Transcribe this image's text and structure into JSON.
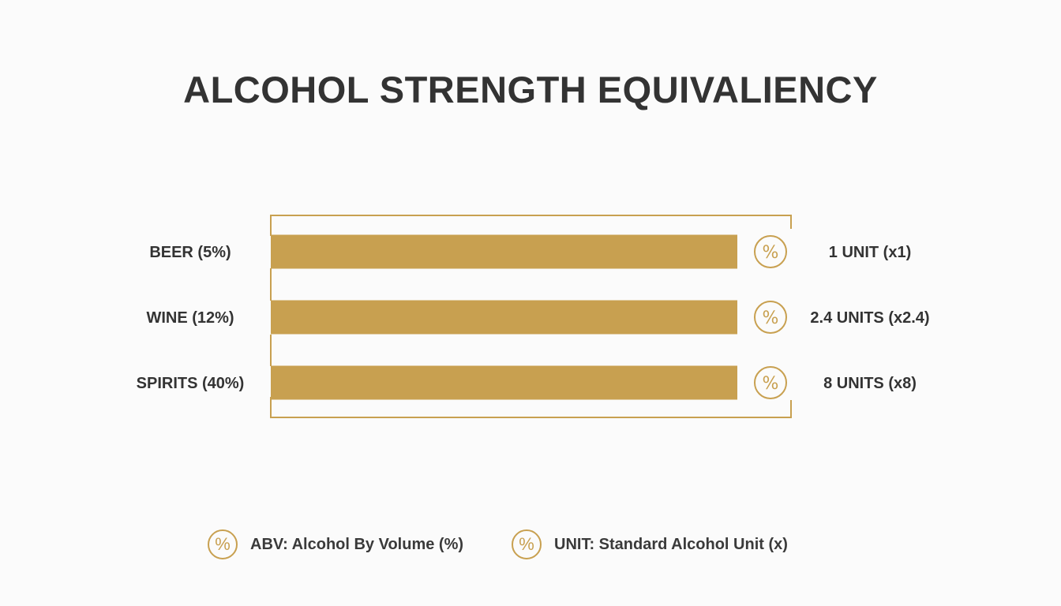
{
  "title": "ALCOHOL STRENGTH EQUIVALIENCY",
  "colors": {
    "bar": "#c8a050",
    "frame": "#c8a050",
    "text": "#333333"
  },
  "chart_data": {
    "type": "bar",
    "orientation": "horizontal",
    "categories": [
      "BEER (5%)",
      "WINE (12%)",
      "SPIRITS (40%)"
    ],
    "values": [
      1,
      2.4,
      8
    ],
    "value_labels": [
      "1 UNIT (x1)",
      "2.4 UNITS (x2.4)",
      "8 UNITS (x8)"
    ],
    "icon": "percent-icon",
    "grid": false
  },
  "legend": [
    {
      "icon": "percent-icon",
      "label": "ABV: Alcohol By Volume (%)"
    },
    {
      "icon": "percent-icon",
      "label": "UNIT: Standard Alcohol Unit (x)"
    }
  ]
}
